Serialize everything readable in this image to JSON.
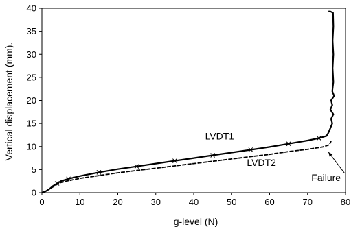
{
  "chart_data": {
    "type": "line",
    "xlabel": "g-level (N)",
    "ylabel": "Vertical displacement (mm).",
    "xlim": [
      0,
      80
    ],
    "ylim": [
      0,
      40
    ],
    "x_ticks": [
      "0",
      "10",
      "20",
      "30",
      "40",
      "50",
      "60",
      "70",
      "80"
    ],
    "y_ticks": [
      "0",
      "5",
      "10",
      "15",
      "20",
      "25",
      "30",
      "35",
      "40"
    ],
    "grid": false,
    "legend": "none",
    "series": [
      {
        "name": "LVDT1",
        "points": [
          [
            0,
            0
          ],
          [
            1,
            0.3
          ],
          [
            2,
            0.8
          ],
          [
            3,
            1.5
          ],
          [
            4,
            2.0
          ],
          [
            5,
            2.5
          ],
          [
            7,
            3.0
          ],
          [
            10,
            3.6
          ],
          [
            15,
            4.4
          ],
          [
            20,
            5.1
          ],
          [
            25,
            5.7
          ],
          [
            30,
            6.3
          ],
          [
            35,
            6.9
          ],
          [
            40,
            7.5
          ],
          [
            45,
            8.1
          ],
          [
            50,
            8.7
          ],
          [
            55,
            9.3
          ],
          [
            60,
            9.9
          ],
          [
            65,
            10.6
          ],
          [
            70,
            11.3
          ],
          [
            73,
            11.8
          ],
          [
            75,
            12.3
          ],
          [
            75.5,
            13
          ],
          [
            76,
            14
          ],
          [
            76.5,
            15
          ],
          [
            76.2,
            16
          ],
          [
            76.8,
            17
          ],
          [
            76.0,
            18
          ],
          [
            76.5,
            19
          ],
          [
            76.2,
            20
          ],
          [
            77.0,
            21
          ],
          [
            76.5,
            22
          ],
          [
            76.8,
            24
          ],
          [
            76.6,
            27
          ],
          [
            76.8,
            30
          ],
          [
            76.6,
            33
          ],
          [
            76.8,
            36
          ],
          [
            76.7,
            39
          ],
          [
            76,
            39.3
          ],
          [
            75.5,
            39.3
          ]
        ]
      },
      {
        "name": "LVDT2",
        "points": [
          [
            0,
            0
          ],
          [
            1,
            0.3
          ],
          [
            2,
            0.8
          ],
          [
            3,
            1.3
          ],
          [
            4,
            1.8
          ],
          [
            5,
            2.2
          ],
          [
            7,
            2.6
          ],
          [
            10,
            3.1
          ],
          [
            15,
            3.7
          ],
          [
            20,
            4.3
          ],
          [
            25,
            4.8
          ],
          [
            30,
            5.3
          ],
          [
            35,
            5.8
          ],
          [
            40,
            6.3
          ],
          [
            45,
            6.8
          ],
          [
            50,
            7.3
          ],
          [
            55,
            7.8
          ],
          [
            60,
            8.3
          ],
          [
            65,
            8.9
          ],
          [
            70,
            9.4
          ],
          [
            74,
            9.9
          ],
          [
            75.5,
            10.3
          ],
          [
            76,
            10.8
          ],
          [
            76.2,
            11.2
          ]
        ]
      }
    ],
    "annotations": [
      {
        "text": "LVDT1",
        "x": 43,
        "y": 11.5
      },
      {
        "text": "LVDT2",
        "x": 54,
        "y": 5.8
      },
      {
        "text": "Failure",
        "x": 71,
        "y": 2.5,
        "arrow_to": [
          75.5,
          8.8
        ]
      }
    ]
  }
}
